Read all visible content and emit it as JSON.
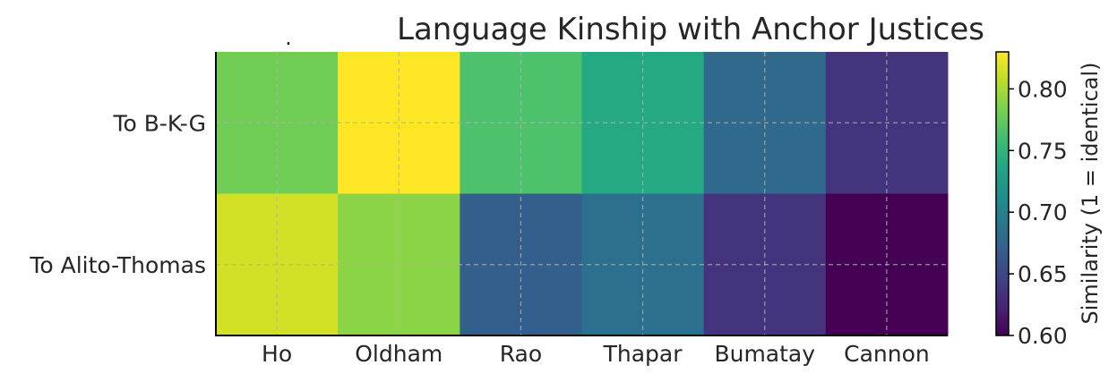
{
  "chart_data": {
    "type": "heatmap",
    "title": "Language Kinship with Anchor Justices",
    "stray_mark": ".",
    "rows": [
      "To B-K-G",
      "To Alito-Thomas"
    ],
    "columns": [
      "Ho",
      "Oldham",
      "Rao",
      "Thapar",
      "Bumatay",
      "Cannon"
    ],
    "values": [
      [
        0.78,
        0.83,
        0.765,
        0.74,
        0.68,
        0.635
      ],
      [
        0.815,
        0.79,
        0.67,
        0.685,
        0.635,
        0.6
      ]
    ],
    "colorbar": {
      "label": "Similarity (1 = identical)",
      "vmin": 0.6,
      "vmax": 0.83,
      "ticks": [
        0.6,
        0.65,
        0.7,
        0.75,
        0.8
      ],
      "tick_labels": [
        "0.60",
        "0.65",
        "0.70",
        "0.75",
        "0.80"
      ],
      "colormap": "viridis"
    },
    "grid": true,
    "grid_style": "dashed"
  }
}
